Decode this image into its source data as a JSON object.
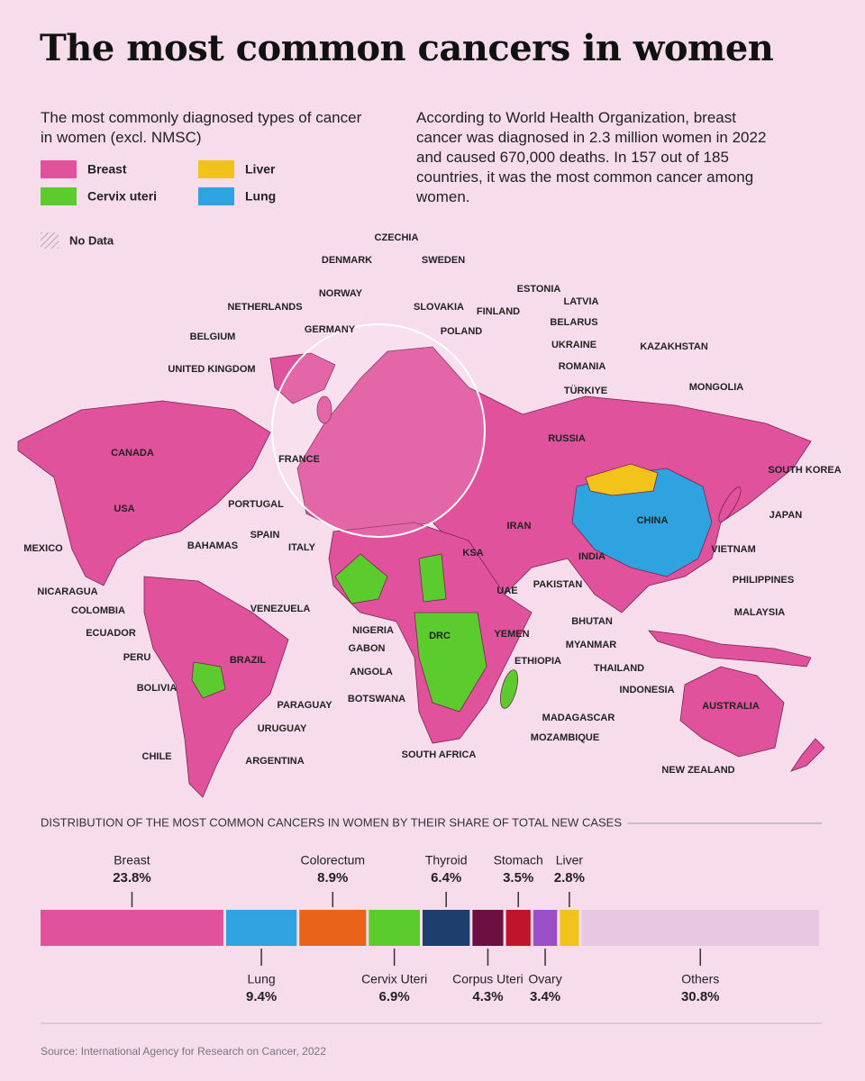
{
  "header": {
    "title": "The most common cancers in women",
    "subtitle": "The most commonly diagnosed types of cancer in women (excl. NMSC)",
    "description": "According to World Health Organization, breast cancer was diagnosed in 2.3 million women in 2022 and caused 670,000 deaths. In 157 out of 185 countries, it was the most common cancer among women."
  },
  "legend": [
    {
      "label": "Breast",
      "color": "#e0529c"
    },
    {
      "label": "Liver",
      "color": "#f2c31a"
    },
    {
      "label": "Cervix uteri",
      "color": "#5ccb2e"
    },
    {
      "label": "Lung",
      "color": "#2ea3e0"
    }
  ],
  "no_data": "No Data",
  "map": {
    "labels": [
      "CZECHIA",
      "DENMARK",
      "SWEDEN",
      "ESTONIA",
      "NORWAY",
      "NETHERLANDS",
      "SLOVAKIA",
      "FINLAND",
      "LATVIA",
      "BELARUS",
      "GERMANY",
      "BELGIUM",
      "POLAND",
      "UKRAINE",
      "KAZAKHSTAN",
      "ROMANIA",
      "UNITED KINGDOM",
      "MONGOLIA",
      "TÜRKIYE",
      "CANADA",
      "RUSSIA",
      "FRANCE",
      "SOUTH KOREA",
      "PORTUGAL",
      "USA",
      "CHINA",
      "JAPAN",
      "IRAN",
      "SPAIN",
      "BAHAMAS",
      "ITALY",
      "MEXICO",
      "VIETNAM",
      "KSA",
      "INDIA",
      "PHILIPPINES",
      "PAKISTAN",
      "NICARAGUA",
      "UAE",
      "COLOMBIA",
      "VENEZUELA",
      "MALAYSIA",
      "BHUTAN",
      "NIGERIA",
      "YEMEN",
      "ECUADOR",
      "DRC",
      "MYANMAR",
      "GABON",
      "PERU",
      "BRAZIL",
      "ETHIOPIA",
      "THAILAND",
      "ANGOLA",
      "BOLIVIA",
      "INDONESIA",
      "BOTSWANA",
      "PARAGUAY",
      "AUSTRALIA",
      "MADAGASCAR",
      "URUGUAY",
      "MOZAMBIQUE",
      "CHILE",
      "SOUTH AFRICA",
      "ARGENTINA",
      "NEW ZEALAND"
    ]
  },
  "chart_data": {
    "type": "stacked-bar",
    "title": "DISTRIBUTION OF THE MOST COMMON CANCERS IN WOMEN BY THEIR SHARE OF TOTAL NEW CASES",
    "categories": [
      "Breast",
      "Lung",
      "Colorectum",
      "Cervix Uteri",
      "Thyroid",
      "Corpus Uteri",
      "Stomach",
      "Ovary",
      "Liver",
      "Others"
    ],
    "values": [
      23.8,
      9.4,
      8.9,
      6.9,
      6.4,
      4.3,
      3.5,
      3.4,
      2.8,
      30.8
    ],
    "value_labels": [
      "23.8%",
      "9.4%",
      "8.9%",
      "6.9%",
      "6.4%",
      "4.3%",
      "3.5%",
      "3.4%",
      "2.8%",
      "30.8%"
    ],
    "colors": [
      "#e0529c",
      "#2ea3e0",
      "#e8641a",
      "#5ccb2e",
      "#1e3f6e",
      "#6b1040",
      "#c0142a",
      "#9a4fc7",
      "#f2c31a",
      "#e8c8e0"
    ]
  },
  "source": "Source: International Agency for Research on Cancer, 2022"
}
